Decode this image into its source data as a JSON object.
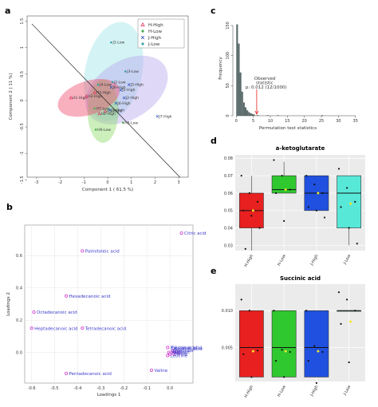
{
  "panel_labels": {
    "a": "a",
    "b": "b",
    "c": "c",
    "d": "d",
    "e": "e"
  },
  "chart_data": [
    {
      "id": "a",
      "type": "scatter",
      "xlabel": "Component 1 ( 61.5 %)",
      "ylabel": "Component 2 ( 11 %)",
      "xlim": [
        -3.4,
        3.4
      ],
      "ylim": [
        -1.45,
        1.6
      ],
      "xticks": [
        "-3",
        "-2",
        "-1",
        "0",
        "1",
        "2",
        "3"
      ],
      "yticks": [
        "-1.5",
        "-1",
        "-0.5",
        "0",
        "0.5",
        "1",
        "1.5"
      ],
      "xtick_values": [
        -3,
        -2,
        -1,
        0,
        1,
        2,
        3
      ],
      "ytick_values": [
        -1.5,
        -1,
        -0.5,
        0,
        0.5,
        1,
        1.5
      ],
      "legend": {
        "position": "top-right",
        "entries": [
          "H-High",
          "H-Low",
          "J-High",
          "J-Low"
        ]
      },
      "colors": {
        "H-High": "#f0506e",
        "H-Low": "#8fdc6a",
        "J-High": "#5c88e6",
        "J-Low": "#a0e4e6",
        "J-High-ellipse": "#b8a8ee"
      },
      "diagonal": [
        [
          -3.2,
          1.45
        ],
        [
          3.05,
          -1.45
        ]
      ],
      "ellipses": [
        {
          "group": "J-Low",
          "cx": 0.25,
          "cy": 0.55,
          "rx": 1.2,
          "ry": 0.95,
          "angle": 12
        },
        {
          "group": "J-High",
          "cx": 0.8,
          "cy": 0.2,
          "rx": 1.9,
          "ry": 0.55,
          "angle": -32
        },
        {
          "group": "H-Low",
          "cx": -0.2,
          "cy": -0.2,
          "rx": 0.65,
          "ry": 0.6,
          "angle": 0
        },
        {
          "group": "H-High",
          "cx": -0.8,
          "cy": 0.05,
          "rx": 1.35,
          "ry": 0.32,
          "angle": -18
        }
      ],
      "points": [
        {
          "label": "H1-High",
          "x": -1.55,
          "y": 0.05,
          "group": "H-High"
        },
        {
          "label": "H2-High",
          "x": -0.9,
          "y": 0.08,
          "group": "H-High"
        },
        {
          "label": "H3-High",
          "x": -0.55,
          "y": 0.15,
          "group": "H-High"
        },
        {
          "label": "H4-High",
          "x": -0.35,
          "y": -0.25,
          "group": "H-High"
        },
        {
          "label": "H5-High",
          "x": -0.1,
          "y": -0.2,
          "group": "H-High"
        },
        {
          "label": "H6-Low",
          "x": -0.5,
          "y": -0.55,
          "group": "H-Low"
        },
        {
          "label": "H7-Low",
          "x": -0.55,
          "y": -0.15,
          "group": "H-Low"
        },
        {
          "label": "H8-Low",
          "x": 0.65,
          "y": -0.42,
          "group": "H-Low"
        },
        {
          "label": "J1-Low",
          "x": 0.15,
          "y": 1.1,
          "group": "J-Low"
        },
        {
          "label": "J2-Low",
          "x": 0.2,
          "y": 0.35,
          "group": "J-Low"
        },
        {
          "label": "J3-Low",
          "x": 0.75,
          "y": 0.55,
          "group": "J-Low"
        },
        {
          "label": "J4-Low",
          "x": -0.4,
          "y": 0.3,
          "group": "J-Low"
        },
        {
          "label": "J1-High",
          "x": 0.55,
          "y": 0.2,
          "group": "J-High"
        },
        {
          "label": "J2-High",
          "x": 0.7,
          "y": 0.05,
          "group": "J-High"
        },
        {
          "label": "J3-High",
          "x": 0.9,
          "y": 0.3,
          "group": "J-High"
        },
        {
          "label": "J4-High",
          "x": 0.35,
          "y": -0.05,
          "group": "J-High"
        },
        {
          "label": "J5-High",
          "x": 0.1,
          "y": -0.18,
          "group": "J-High"
        },
        {
          "label": "J6-High",
          "x": 0.15,
          "y": 0.25,
          "group": "J-High"
        },
        {
          "label": "J7-High",
          "x": 2.1,
          "y": -0.3,
          "group": "J-High"
        }
      ]
    },
    {
      "id": "b",
      "type": "scatter",
      "xlabel": "Loadings 1",
      "ylabel": "Loadings 2",
      "xlim": [
        -0.63,
        0.1
      ],
      "ylim": [
        -0.19,
        0.79
      ],
      "xticks": [
        "-0.6",
        "-0.5",
        "-0.4",
        "-0.3",
        "-0.2",
        "-0.1",
        "0.0"
      ],
      "yticks": [
        "0.0",
        "0.2",
        "0.4",
        "0.6"
      ],
      "xtick_values": [
        -0.6,
        -0.5,
        -0.4,
        -0.3,
        -0.2,
        -0.1,
        0.0
      ],
      "ytick_values": [
        0.0,
        0.2,
        0.4,
        0.6
      ],
      "point_color": "#d040d0",
      "label_color": "#3a3acc",
      "points": [
        {
          "label": "Citric acid",
          "x": 0.05,
          "y": 0.74
        },
        {
          "label": "Palmitoleic acid",
          "x": -0.38,
          "y": 0.63
        },
        {
          "label": "Hexadecanoic acid",
          "x": -0.45,
          "y": 0.35
        },
        {
          "label": "Octadecanoic acid",
          "x": -0.59,
          "y": 0.25
        },
        {
          "label": "Heptadecanoic acid",
          "x": -0.6,
          "y": 0.15
        },
        {
          "label": "Tetradecanoic acid",
          "x": -0.38,
          "y": 0.15
        },
        {
          "label": "Pentadecanoic acid",
          "x": -0.45,
          "y": -0.13
        },
        {
          "label": "Pyruvic acid",
          "x": -0.01,
          "y": 0.03
        },
        {
          "label": "Valine",
          "x": -0.08,
          "y": -0.11
        },
        {
          "label": "Leucine",
          "x": -0.01,
          "y": -0.02
        },
        {
          "label": "",
          "x": -0.005,
          "y": 0.0
        },
        {
          "label": "",
          "x": 0.0,
          "y": -0.01
        },
        {
          "label": "",
          "x": 0.01,
          "y": 0.01
        },
        {
          "label": "",
          "x": 0.02,
          "y": 0.0
        },
        {
          "label": "",
          "x": 0.03,
          "y": 0.005
        },
        {
          "label": "",
          "x": 0.04,
          "y": -0.005
        },
        {
          "label": "",
          "x": 0.015,
          "y": -0.008
        }
      ],
      "cluster_labels": [
        "Glutamic acid",
        "Aspartic acid",
        "Isoleucine",
        "Alanine",
        "Proline",
        "Serine"
      ]
    },
    {
      "id": "c",
      "type": "bar",
      "xlabel": "Permutation test statistics",
      "ylabel": "Frequency",
      "xlim": [
        -1,
        36
      ],
      "ylim": [
        0,
        158
      ],
      "xticks": [
        "0",
        "5",
        "10",
        "15",
        "20",
        "25",
        "30",
        "35"
      ],
      "yticks": [
        "0",
        "50",
        "100",
        "150"
      ],
      "xtick_values": [
        0,
        5,
        10,
        15,
        20,
        25,
        30,
        35
      ],
      "ytick_values": [
        0,
        50,
        100,
        150
      ],
      "bar_color": "#5a6a6a",
      "bins": [
        {
          "x0": 0,
          "x1": 0.5,
          "count": 152
        },
        {
          "x0": 0.5,
          "x1": 1,
          "count": 120
        },
        {
          "x0": 1,
          "x1": 1.5,
          "count": 72
        },
        {
          "x0": 1.5,
          "x1": 2,
          "count": 40
        },
        {
          "x0": 2,
          "x1": 2.5,
          "count": 22
        },
        {
          "x0": 2.5,
          "x1": 3,
          "count": 14
        },
        {
          "x0": 3,
          "x1": 3.5,
          "count": 9
        },
        {
          "x0": 3.5,
          "x1": 4,
          "count": 6
        },
        {
          "x0": 4,
          "x1": 4.5,
          "count": 4
        },
        {
          "x0": 4.5,
          "x1": 5,
          "count": 3
        },
        {
          "x0": 5,
          "x1": 5.5,
          "count": 2
        },
        {
          "x0": 6,
          "x1": 6.5,
          "count": 1
        },
        {
          "x0": 9,
          "x1": 9.5,
          "count": 1
        },
        {
          "x0": 12,
          "x1": 12.5,
          "count": 1
        },
        {
          "x0": 25,
          "x1": 25.5,
          "count": 1
        }
      ],
      "observed": {
        "value": 6.0,
        "label_line1": "Observed",
        "label_line2": "statistic",
        "label_line3": "p: 0.012 (12/1000)"
      }
    },
    {
      "id": "d",
      "type": "box",
      "title": "a-ketoglutarate",
      "categories": [
        "H-High",
        "H-Low",
        "J-High",
        "J-Low"
      ],
      "ylim": [
        0.027,
        0.082
      ],
      "yticks": [
        "0.03",
        "0.04",
        "0.05",
        "0.06",
        "0.07",
        "0.08"
      ],
      "ytick_values": [
        0.03,
        0.04,
        0.05,
        0.06,
        0.07,
        0.08
      ],
      "boxes": [
        {
          "group": "H-High",
          "q1": 0.04,
          "median": 0.05,
          "q3": 0.06,
          "whisker_low": 0.027,
          "whisker_high": 0.07,
          "mean": 0.05,
          "color": "#e82020",
          "points": [
            0.07,
            0.06,
            0.055,
            0.05,
            0.047,
            0.04,
            0.028
          ]
        },
        {
          "group": "H-Low",
          "q1": 0.06,
          "median": 0.062,
          "q3": 0.07,
          "whisker_low": 0.06,
          "whisker_high": 0.078,
          "mean": 0.062,
          "color": "#2fc82f",
          "points": [
            0.079,
            0.07,
            0.062,
            0.06,
            0.044
          ]
        },
        {
          "group": "J-High",
          "q1": 0.05,
          "median": 0.06,
          "q3": 0.07,
          "whisker_low": 0.05,
          "whisker_high": 0.07,
          "mean": 0.06,
          "color": "#2050e0",
          "points": [
            0.07,
            0.065,
            0.06,
            0.052,
            0.05,
            0.046
          ]
        },
        {
          "group": "J-Low",
          "q1": 0.04,
          "median": 0.06,
          "q3": 0.07,
          "whisker_low": 0.03,
          "whisker_high": 0.07,
          "mean": 0.054,
          "color": "#58e8d8",
          "points": [
            0.074,
            0.063,
            0.055,
            0.052,
            0.04,
            0.031
          ]
        }
      ]
    },
    {
      "id": "e",
      "type": "box",
      "title": "Succinic acid",
      "categories": [
        "H-High",
        "H-Low",
        "J-High",
        "J-Low"
      ],
      "ylim": [
        0.0004,
        0.0136
      ],
      "yticks": [
        "0.005",
        "0.010"
      ],
      "ytick_values": [
        0.005,
        0.01
      ],
      "boxes": [
        {
          "group": "H-High",
          "q1": 0.001,
          "median": 0.005,
          "q3": 0.01,
          "whisker_low": 0.001,
          "whisker_high": 0.01,
          "mean": 0.0045,
          "color": "#e82020",
          "points": [
            0.0115,
            0.01,
            0.0046,
            0.0041,
            0.001
          ]
        },
        {
          "group": "H-Low",
          "q1": 0.001,
          "median": 0.005,
          "q3": 0.01,
          "whisker_low": 0.001,
          "whisker_high": 0.01,
          "mean": 0.0045,
          "color": "#2fc82f",
          "points": [
            0.01,
            0.0047,
            0.0044,
            0.0032,
            0.001
          ]
        },
        {
          "group": "J-High",
          "q1": 0.001,
          "median": 0.005,
          "q3": 0.01,
          "whisker_low": 0.001,
          "whisker_high": 0.01,
          "mean": 0.0045,
          "color": "#2050e0",
          "points": [
            0.01,
            0.0052,
            0.0044,
            0.0032,
            0.0002
          ]
        },
        {
          "group": "J-Low",
          "q1": 0.01,
          "median": 0.01,
          "q3": 0.01,
          "whisker_low": 0.01,
          "whisker_high": 0.01,
          "mean": 0.0085,
          "color": "#58e8d8",
          "points": [
            0.0125,
            0.0115,
            0.01,
            0.0082,
            0.003
          ]
        }
      ]
    }
  ]
}
